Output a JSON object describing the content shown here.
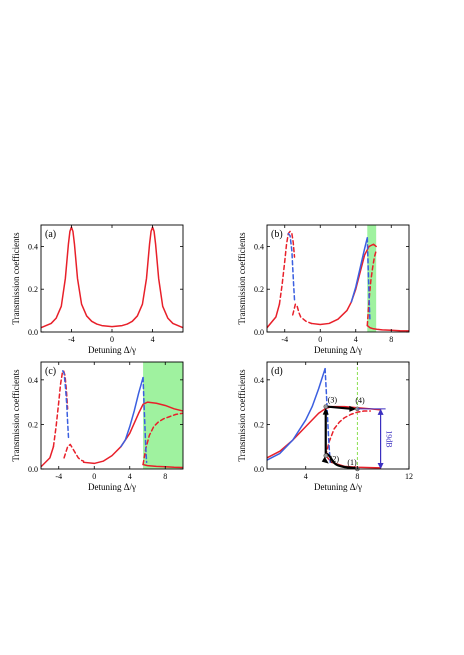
{
  "chart_data": [
    {
      "type": "line",
      "panel_label": "(a)",
      "xlabel": "Detuning Δ/γ",
      "ylabel": "Transmission coefficients",
      "xlim": [
        -7,
        7
      ],
      "ylim": [
        0,
        0.5
      ],
      "xticks": [
        "-4",
        "0",
        "4"
      ],
      "xtick_values": [
        -4,
        0,
        4
      ],
      "yticks": [
        "0.0",
        "0.2",
        "0.4"
      ],
      "ytick_values": [
        0,
        0.2,
        0.4
      ],
      "series": [
        {
          "color": "#e8202a",
          "dash": "solid",
          "x": [
            -7,
            -6,
            -5.5,
            -5,
            -4.6,
            -4.3,
            -4.15,
            -4,
            -3.85,
            -3.7,
            -3.4,
            -3,
            -2.5,
            -2,
            -1.5,
            -1,
            0,
            1,
            1.5,
            2,
            2.5,
            3,
            3.4,
            3.7,
            3.85,
            4,
            4.15,
            4.3,
            4.6,
            5,
            5.5,
            6,
            7
          ],
          "y": [
            0.02,
            0.04,
            0.065,
            0.12,
            0.25,
            0.41,
            0.47,
            0.49,
            0.47,
            0.41,
            0.25,
            0.13,
            0.075,
            0.05,
            0.037,
            0.03,
            0.025,
            0.03,
            0.037,
            0.05,
            0.075,
            0.13,
            0.25,
            0.41,
            0.47,
            0.49,
            0.47,
            0.41,
            0.25,
            0.12,
            0.065,
            0.04,
            0.02
          ]
        }
      ]
    },
    {
      "type": "line",
      "panel_label": "(b)",
      "xlabel": "Detuning Δ/γ",
      "ylabel": "Transmission coefficients",
      "xlim": [
        -6,
        10
      ],
      "ylim": [
        0,
        0.5
      ],
      "xticks": [
        "-4",
        "0",
        "4",
        "8"
      ],
      "xtick_values": [
        -4,
        0,
        4,
        8
      ],
      "yticks": [
        "0.0",
        "0.2",
        "0.4"
      ],
      "ytick_values": [
        0,
        0.2,
        0.4
      ],
      "shaded_region": {
        "x": [
          5.3,
          6.3
        ],
        "color": "#8ef08e"
      },
      "series": [
        {
          "color": "#e8202a",
          "dash": "solid",
          "x": [
            -6,
            -5,
            -4.6
          ],
          "y": [
            0.02,
            0.07,
            0.13
          ]
        },
        {
          "color": "#e8202a",
          "dash": "dashed",
          "x": [
            -4.6,
            -4.3,
            -4,
            -3.8,
            -3.6,
            -3.4,
            -3.2,
            -3.05,
            -2.9
          ],
          "y": [
            0.13,
            0.22,
            0.33,
            0.41,
            0.46,
            0.47,
            0.46,
            0.42,
            0.35
          ]
        },
        {
          "color": "#e8202a",
          "dash": "dashed",
          "x": [
            -3.1,
            -2.8,
            -2.6,
            -2.4,
            -2.2,
            -1.9,
            -1.6,
            -1.3,
            -1
          ],
          "y": [
            0.08,
            0.13,
            0.12,
            0.09,
            0.07,
            0.06,
            0.05,
            0.045,
            0.04
          ]
        },
        {
          "color": "#e8202a",
          "dash": "solid",
          "x": [
            -1,
            0,
            1,
            2,
            3,
            3.5,
            4,
            4.5,
            5,
            5.5,
            6,
            6.3
          ],
          "y": [
            0.04,
            0.035,
            0.04,
            0.06,
            0.1,
            0.14,
            0.2,
            0.28,
            0.36,
            0.4,
            0.41,
            0.4
          ]
        },
        {
          "color": "#e8202a",
          "dash": "dashed",
          "x": [
            5.3,
            5.5,
            5.7,
            5.9,
            6.1,
            6.3
          ],
          "y": [
            0.03,
            0.15,
            0.24,
            0.3,
            0.35,
            0.38
          ]
        },
        {
          "color": "#e8202a",
          "dash": "solid",
          "x": [
            5.3,
            5.6,
            6,
            6.5,
            7,
            8,
            9,
            10
          ],
          "y": [
            0.03,
            0.02,
            0.015,
            0.012,
            0.01,
            0.008,
            0.006,
            0.005
          ]
        },
        {
          "color": "#3b5fe0",
          "dash": "solid",
          "x": [
            3.5,
            4,
            4.5,
            5,
            5.3
          ],
          "y": [
            0.14,
            0.21,
            0.3,
            0.39,
            0.44
          ]
        },
        {
          "color": "#3b5fe0",
          "dash": "dashed",
          "x": [
            5.3,
            5.4,
            5.5,
            5.6
          ],
          "y": [
            0.44,
            0.3,
            0.17,
            0.05
          ]
        },
        {
          "color": "#3b5fe0",
          "dash": "dashed",
          "x": [
            -3.6,
            -3.4,
            -3.2,
            -3.1,
            -3,
            -2.9
          ],
          "y": [
            0.46,
            0.45,
            0.38,
            0.3,
            0.22,
            0.15
          ]
        }
      ]
    },
    {
      "type": "line",
      "panel_label": "(c)",
      "xlabel": "Detuning Δ/γ",
      "ylabel": "Transmission coefficients",
      "xlim": [
        -6,
        10
      ],
      "ylim": [
        0,
        0.48
      ],
      "xticks": [
        "-4",
        "0",
        "4",
        "8"
      ],
      "xtick_values": [
        -4,
        0,
        4,
        8
      ],
      "yticks": [
        "0.0",
        "0.2",
        "0.4"
      ],
      "ytick_values": [
        0,
        0.2,
        0.4
      ],
      "shaded_region": {
        "x": [
          5.5,
          10
        ],
        "color": "#8ef08e"
      },
      "series": [
        {
          "color": "#e8202a",
          "dash": "solid",
          "x": [
            -6,
            -5,
            -4.6
          ],
          "y": [
            0.01,
            0.05,
            0.1
          ]
        },
        {
          "color": "#e8202a",
          "dash": "dashed",
          "x": [
            -4.6,
            -4.3,
            -4,
            -3.8,
            -3.6,
            -3.45,
            -3.3,
            -3.15,
            -3
          ],
          "y": [
            0.1,
            0.19,
            0.3,
            0.38,
            0.43,
            0.44,
            0.42,
            0.36,
            0.27
          ]
        },
        {
          "color": "#e8202a",
          "dash": "dashed",
          "x": [
            -3.4,
            -3,
            -2.7,
            -2.4,
            -2.1,
            -1.8,
            -1.5,
            -1.2
          ],
          "y": [
            0.05,
            0.1,
            0.11,
            0.09,
            0.07,
            0.05,
            0.04,
            0.035
          ]
        },
        {
          "color": "#e8202a",
          "dash": "solid",
          "x": [
            -1.2,
            0,
            1,
            2,
            3,
            4,
            5,
            5.5,
            6,
            7,
            8,
            9,
            10
          ],
          "y": [
            0.03,
            0.025,
            0.035,
            0.06,
            0.1,
            0.16,
            0.25,
            0.29,
            0.3,
            0.295,
            0.285,
            0.27,
            0.26
          ]
        },
        {
          "color": "#e8202a",
          "dash": "dashed",
          "x": [
            5.5,
            5.8,
            6.2,
            6.7,
            7.2,
            7.8,
            8.5,
            9.2,
            10
          ],
          "y": [
            0.02,
            0.09,
            0.15,
            0.19,
            0.21,
            0.225,
            0.235,
            0.245,
            0.25
          ]
        },
        {
          "color": "#e8202a",
          "dash": "solid",
          "x": [
            5.5,
            6,
            7,
            8,
            9,
            10
          ],
          "y": [
            0.02,
            0.015,
            0.012,
            0.01,
            0.008,
            0.007
          ]
        },
        {
          "color": "#3b5fe0",
          "dash": "solid",
          "x": [
            3,
            3.5,
            4,
            4.5,
            5,
            5.5
          ],
          "y": [
            0.1,
            0.13,
            0.19,
            0.26,
            0.34,
            0.41
          ]
        },
        {
          "color": "#3b5fe0",
          "dash": "dashed",
          "x": [
            5.5,
            5.6,
            5.7,
            5.8,
            5.9
          ],
          "y": [
            0.41,
            0.3,
            0.2,
            0.1,
            0.03
          ]
        },
        {
          "color": "#3b5fe0",
          "dash": "dashed",
          "x": [
            -3.55,
            -3.4,
            -3.25,
            -3.1,
            -3,
            -2.9
          ],
          "y": [
            0.44,
            0.43,
            0.37,
            0.29,
            0.21,
            0.14
          ]
        }
      ]
    },
    {
      "type": "line",
      "panel_label": "(d)",
      "xlabel": "Detuning Δ/γ",
      "ylabel": "Transmission coefficients",
      "xlim": [
        1,
        12
      ],
      "ylim": [
        0,
        0.48
      ],
      "xticks": [
        "4",
        "8",
        "12"
      ],
      "xtick_values": [
        4,
        8,
        12
      ],
      "yticks": [
        "0.0",
        "0.2",
        "0.4"
      ],
      "ytick_values": [
        0,
        0.2,
        0.4
      ],
      "vline": {
        "x": 8,
        "color": "#7ddc3c"
      },
      "points": [
        {
          "label": "(1)",
          "x": 8,
          "y": 0.0
        },
        {
          "label": "(2)",
          "x": 5.55,
          "y": 0.06
        },
        {
          "label": "(3)",
          "x": 5.55,
          "y": 0.28
        },
        {
          "label": "(4)",
          "x": 8,
          "y": 0.27
        }
      ],
      "db_annotation": {
        "text": "19dB",
        "x": 9.8,
        "y": [
          0.0,
          0.27
        ]
      },
      "series": [
        {
          "color": "#e8202a",
          "dash": "solid",
          "x": [
            1,
            2,
            3,
            4,
            5,
            5.5,
            6,
            7,
            8,
            9,
            9.8
          ],
          "y": [
            0.05,
            0.08,
            0.13,
            0.19,
            0.25,
            0.27,
            0.28,
            0.28,
            0.275,
            0.27,
            0.265
          ]
        },
        {
          "color": "#e8202a",
          "dash": "dashed",
          "x": [
            5.55,
            5.8,
            6.2,
            6.6,
            7,
            7.5,
            8,
            8.5,
            9
          ],
          "y": [
            0.06,
            0.12,
            0.18,
            0.21,
            0.23,
            0.245,
            0.255,
            0.26,
            0.26
          ]
        },
        {
          "color": "#e8202a",
          "dash": "solid",
          "x": [
            5.55,
            6,
            7,
            8,
            9,
            9.8
          ],
          "y": [
            0.06,
            0.03,
            0.012,
            0.008,
            0.006,
            0.005
          ]
        },
        {
          "color": "#3b5fe0",
          "dash": "solid",
          "x": [
            1,
            2,
            3,
            4,
            4.5,
            5,
            5.5
          ],
          "y": [
            0.04,
            0.07,
            0.13,
            0.22,
            0.28,
            0.36,
            0.45
          ]
        },
        {
          "color": "#3b5fe0",
          "dash": "dashed",
          "x": [
            5.5,
            5.6,
            5.7,
            5.8,
            5.9
          ],
          "y": [
            0.45,
            0.34,
            0.22,
            0.11,
            0.03
          ]
        }
      ]
    }
  ]
}
